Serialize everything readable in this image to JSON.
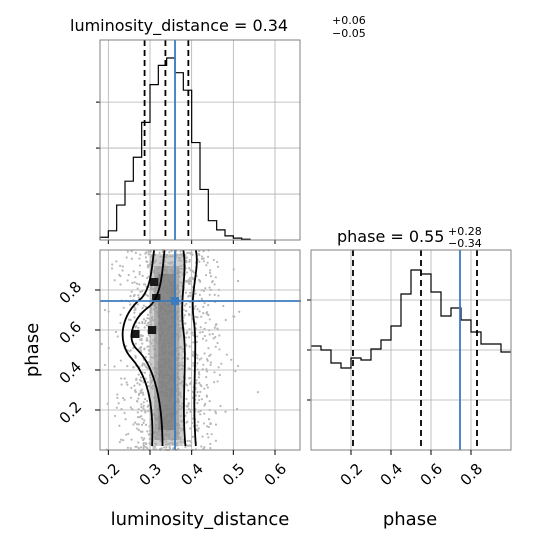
{
  "chart_data": {
    "type": "corner",
    "parameters": [
      "luminosity_distance",
      "phase"
    ],
    "truths": {
      "luminosity_distance": 0.36,
      "phase": 0.745
    },
    "panels": {
      "luminosity_distance_marginal": {
        "title_name": "luminosity_distance",
        "title_value": "0.34",
        "title_plus": "+0.06",
        "title_minus": "−0.05",
        "bins": [
          0.18,
          0.2,
          0.22,
          0.24,
          0.26,
          0.28,
          0.3,
          0.32,
          0.34,
          0.36,
          0.38,
          0.4,
          0.42,
          0.44,
          0.46,
          0.48,
          0.5,
          0.52,
          0.54
        ],
        "counts": [
          0.3,
          1.0,
          3.8,
          6.4,
          9.0,
          12.8,
          16.9,
          19.0,
          19.8,
          18.2,
          16.3,
          10.6,
          5.5,
          2.1,
          1.1,
          0.45,
          0.2,
          0.08
        ],
        "quantiles": [
          0.287,
          0.337,
          0.392
        ],
        "xlim": [
          0.18,
          0.66
        ]
      },
      "phase_marginal": {
        "title_name": "phase",
        "title_value": "0.55",
        "title_plus": "+0.28",
        "title_minus": "−0.34",
        "bins": [
          0.0,
          0.05,
          0.1,
          0.15,
          0.2,
          0.25,
          0.3,
          0.35,
          0.4,
          0.45,
          0.5,
          0.55,
          0.6,
          0.65,
          0.7,
          0.75,
          0.8,
          0.85,
          0.9,
          0.95,
          1.0
        ],
        "counts": [
          10.4,
          10.0,
          8.7,
          8.2,
          9.2,
          9.0,
          10.1,
          11.0,
          12.4,
          15.6,
          18.0,
          17.6,
          15.8,
          13.4,
          14.2,
          13.0,
          11.8,
          10.6,
          10.6,
          9.8
        ],
        "quantiles": [
          0.21,
          0.55,
          0.83
        ],
        "xlim": [
          0.0,
          1.0
        ]
      },
      "joint": {
        "xlim": [
          0.18,
          0.66
        ],
        "ylim": [
          0.0,
          1.0
        ]
      }
    },
    "x_ticks_ld": [
      "0.2",
      "0.3",
      "0.4",
      "0.5",
      "0.6"
    ],
    "x_ticks_phase": [
      "0.2",
      "0.4",
      "0.6",
      "0.8"
    ],
    "y_ticks_phase": [
      "0.2",
      "0.4",
      "0.6",
      "0.8"
    ],
    "xlabel_left": "luminosity_distance",
    "xlabel_right": "phase",
    "ylabel": "phase",
    "colors": {
      "truth": "#3b7bbf",
      "hist": "#000000",
      "grid": "#b0b0b0"
    }
  }
}
